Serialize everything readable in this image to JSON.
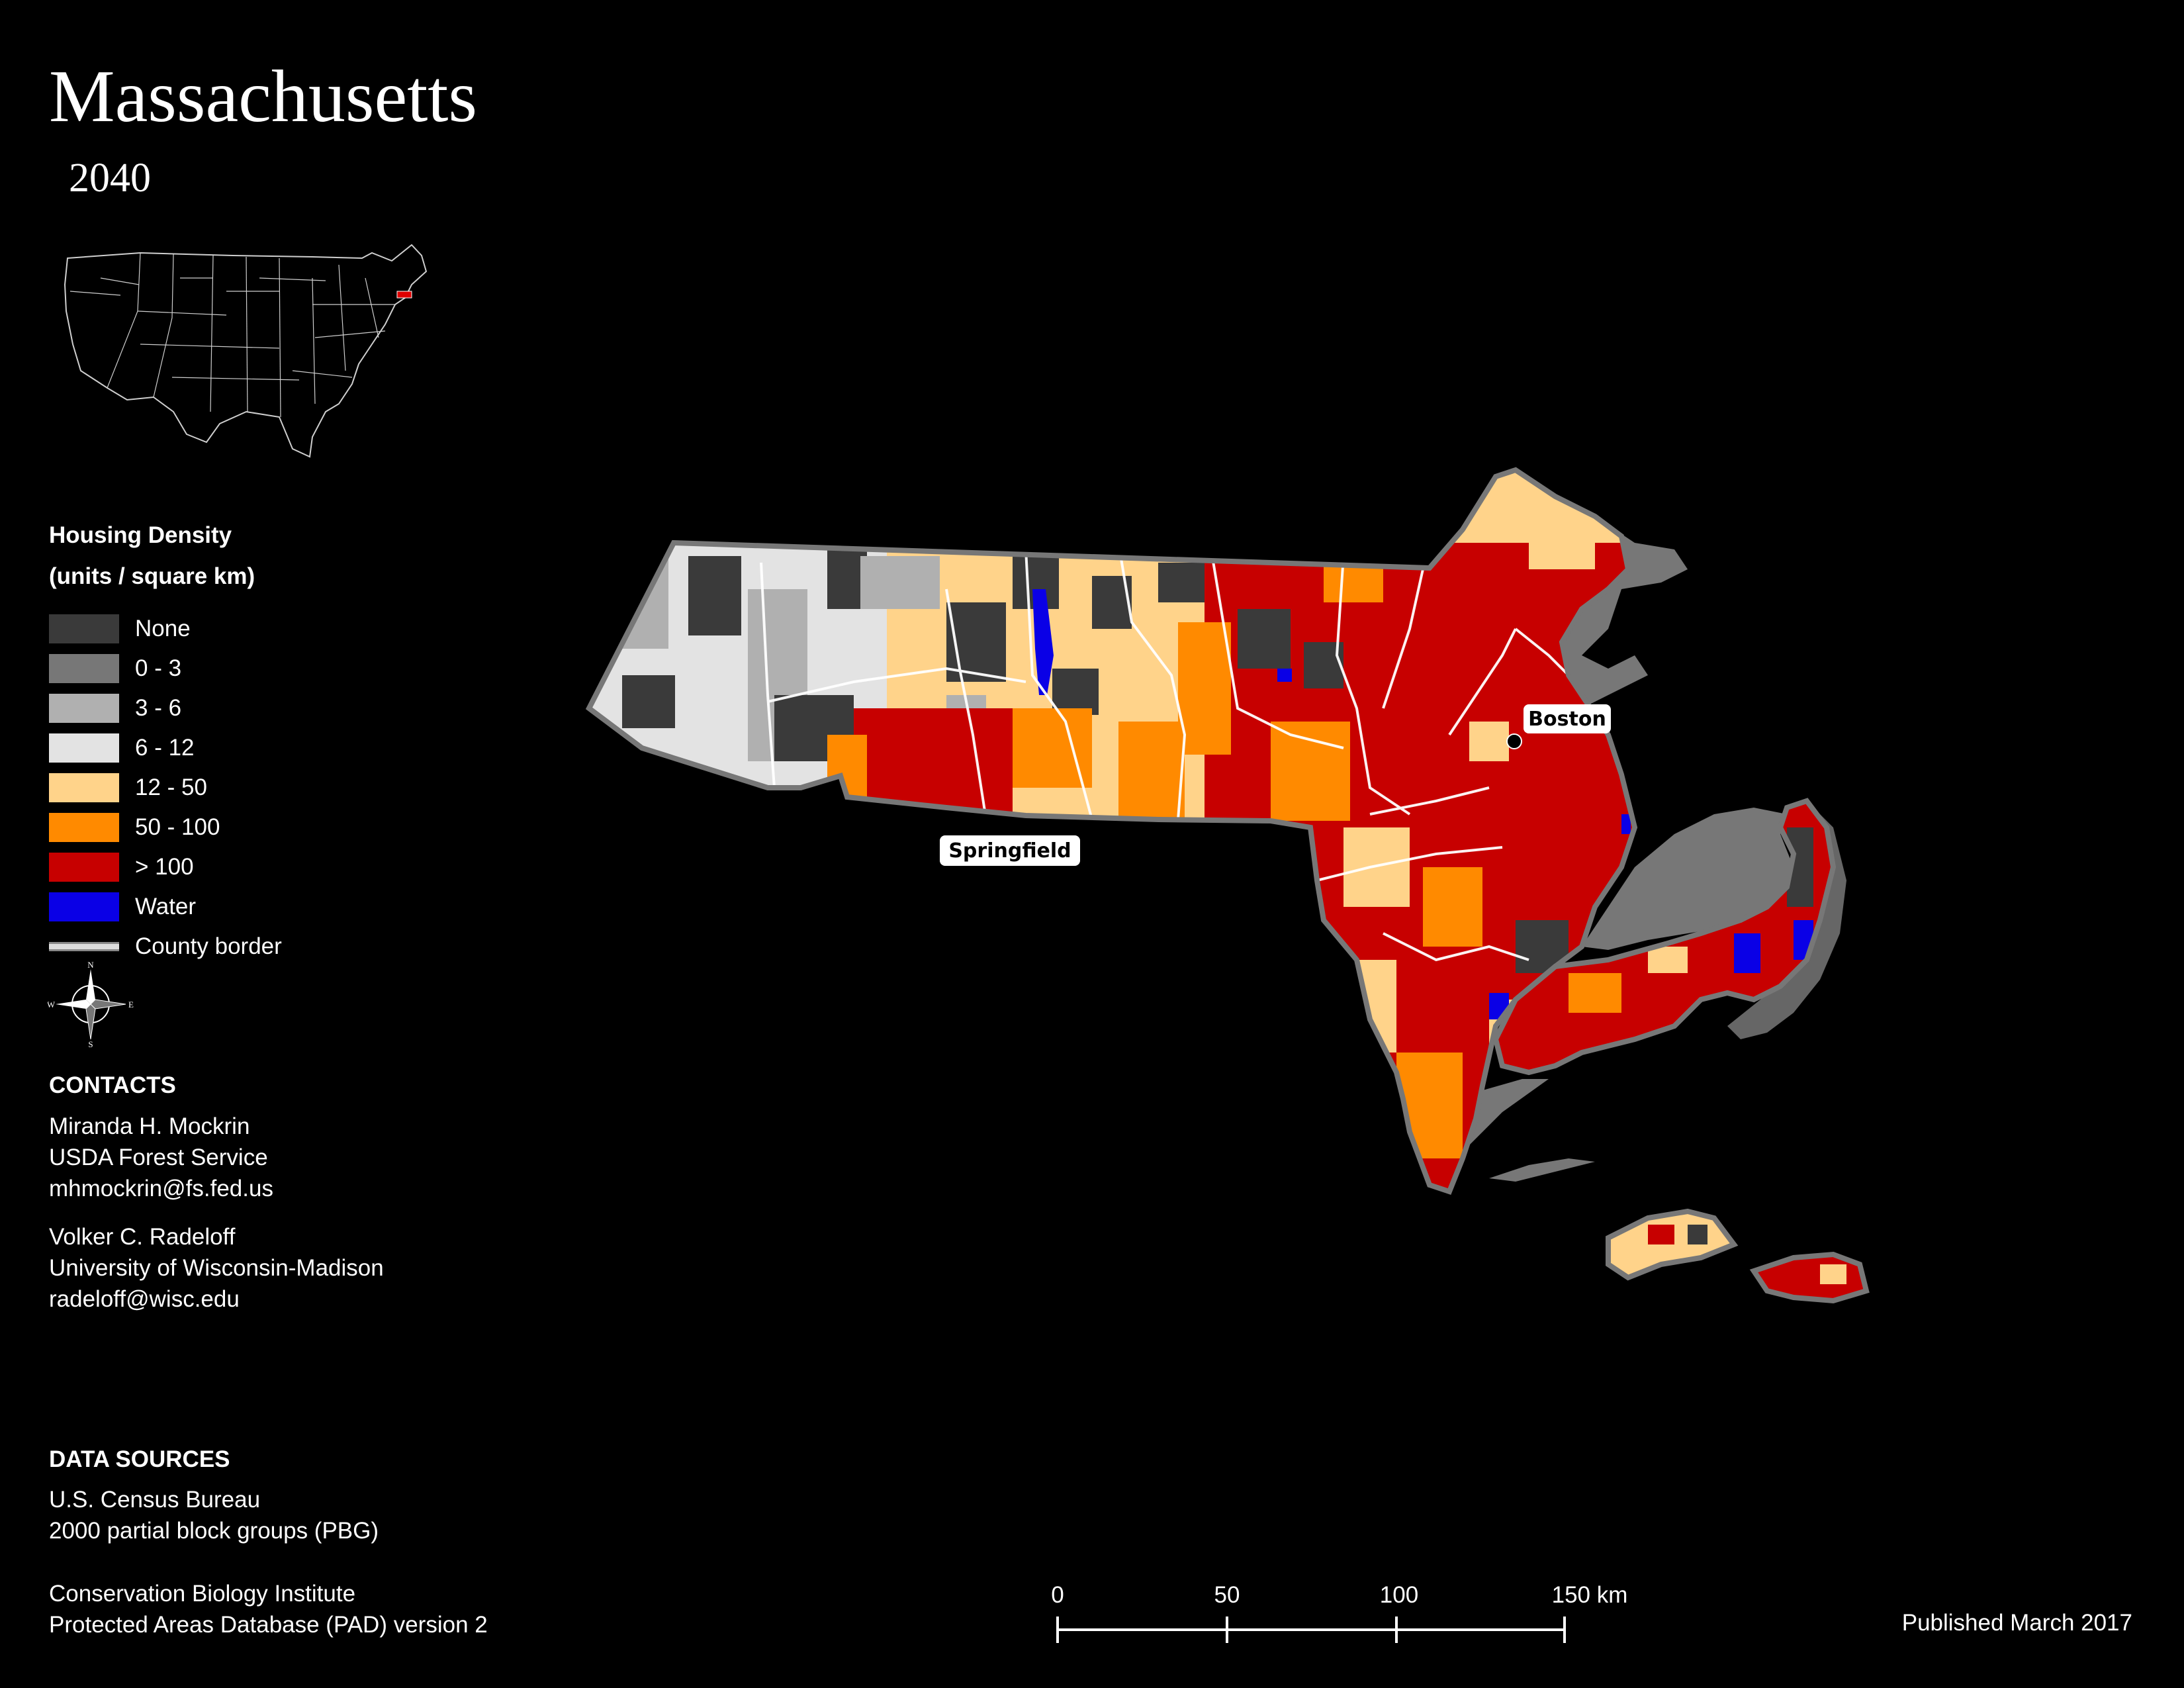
{
  "title": "Massachusetts",
  "subtitle": "2040",
  "legend": {
    "title_line1": "Housing Density",
    "title_line2": "(units / square km)",
    "items": [
      {
        "label": "None",
        "color": "#3a3a3a"
      },
      {
        "label": "0 - 3",
        "color": "#777777"
      },
      {
        "label": "3 - 6",
        "color": "#b0b0b0"
      },
      {
        "label": "6 - 12",
        "color": "#e3e3e3"
      },
      {
        "label": "12 - 50",
        "color": "#ffd38a"
      },
      {
        "label": "50 - 100",
        "color": "#ff8a00"
      },
      {
        "label": "> 100",
        "color": "#c70000"
      },
      {
        "label": "Water",
        "color": "#0a00e6"
      },
      {
        "label": "County border",
        "color": "#dddddd"
      }
    ]
  },
  "compass": {
    "n": "N",
    "s": "S",
    "e": "E",
    "w": "W"
  },
  "contacts": {
    "heading": "CONTACTS",
    "people": [
      {
        "name": "Miranda H. Mockrin",
        "org": "USDA Forest Service",
        "email": "mhmockrin@fs.fed.us"
      },
      {
        "name": "Volker C. Radeloff",
        "org": "University of Wisconsin-Madison",
        "email": "radeloff@wisc.edu"
      }
    ]
  },
  "data_sources": {
    "heading": "DATA SOURCES",
    "lines": [
      "U.S. Census Bureau",
      "2000 partial block groups (PBG)",
      "Conservation Biology Institute",
      "Protected Areas Database (PAD) version 2"
    ]
  },
  "map": {
    "cities": [
      {
        "name": "Boston"
      },
      {
        "name": "Springfield"
      }
    ]
  },
  "scale": {
    "labels": [
      "0",
      "50",
      "100",
      "150 km"
    ]
  },
  "published": "Published March 2017"
}
